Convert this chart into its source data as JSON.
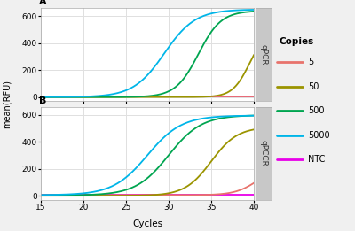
{
  "x_min": 15,
  "x_max": 40,
  "x_ticks": [
    15,
    20,
    25,
    30,
    35,
    40
  ],
  "xlabel": "Cycles",
  "ylabel": "mean(RFU)",
  "panel_labels": [
    "A",
    "B"
  ],
  "strip_labels": [
    "qPCR",
    "qPCCR"
  ],
  "legend_title": "Copies",
  "legend_entries": [
    "5",
    "50",
    "500",
    "5000",
    "NTC"
  ],
  "colors": {
    "5": "#e8736c",
    "50": "#9b9400",
    "500": "#00a550",
    "5000": "#00b5e8",
    "NTC": "#e800e8"
  },
  "bg_color": "#f0f0f0",
  "plot_bg": "#ffffff",
  "strip_bg": "#c8c8c8",
  "grid_color": "#e0e0e0",
  "ylim": [
    -30,
    660
  ],
  "yticks": [
    0,
    200,
    400,
    600
  ]
}
